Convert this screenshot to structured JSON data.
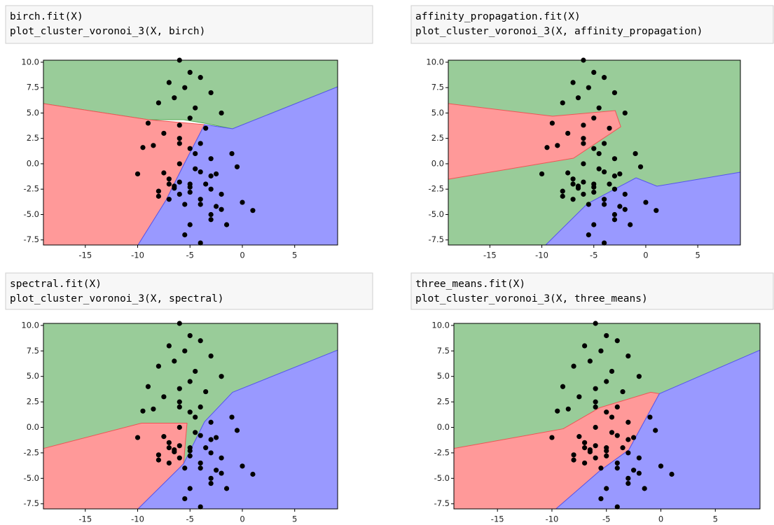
{
  "cells": [
    {
      "code": [
        "birch.fit(X)",
        "plot_cluster_voronoi_3(X, birch)"
      ],
      "chart_data": {
        "type": "scatter",
        "color": "#000000",
        "x": [
          -6,
          -5,
          -4,
          -7,
          -5.5,
          -3,
          -8,
          -6.5,
          -4.5,
          -2,
          -9,
          -5,
          -3.5,
          -7.5,
          -6,
          -4,
          -1,
          -5,
          -8.5,
          -3,
          -6,
          -4.5,
          -2.5,
          -7,
          -5,
          -10,
          -3,
          -6,
          -0.5,
          -4,
          -5.5,
          -7,
          -2,
          -6.5,
          -8,
          -4,
          -3,
          -5,
          -1.5,
          1,
          -9.5,
          -6,
          -4.5,
          -3.5,
          -7,
          -5,
          -2,
          -6,
          -8,
          -4,
          0,
          -3,
          -5.5,
          -6.5,
          -4,
          -7.5,
          -5,
          -2.5,
          -3,
          -6
        ],
        "y": [
          10.2,
          9,
          8.5,
          8,
          7.5,
          7,
          6,
          6.5,
          5.5,
          5,
          4,
          4.5,
          3.5,
          3,
          2.5,
          2,
          1,
          1.5,
          1.8,
          0.5,
          0,
          -0.5,
          -1,
          -1.5,
          -2,
          -1,
          -2.5,
          -3,
          -0.3,
          -3.5,
          -4,
          -2,
          -4.5,
          -2.2,
          -3.2,
          -4,
          -5,
          -6,
          -6,
          -4.6,
          1.6,
          2,
          1,
          -2,
          -3.5,
          -2.8,
          -3,
          -1.8,
          -2.7,
          -0.8,
          -3.8,
          -5.5,
          -7,
          -2.4,
          -7.8,
          -0.9,
          -2.3,
          -4.2,
          -1.2,
          3.8
        ],
        "xlim": [
          -19,
          9.1
        ],
        "ylim": [
          -8,
          10.2
        ],
        "xticks": [
          -15,
          -10,
          -5,
          0,
          5
        ],
        "yticks": [
          {
            "value": 10,
            "label": "10.0"
          },
          7.5,
          {
            "value": 5,
            "label": "5.0"
          },
          2.5,
          {
            "value": 0,
            "label": "0.0"
          },
          -2.5,
          {
            "value": -5,
            "label": "-5.0"
          },
          -7.5
        ]
      }
    },
    {
      "code": [
        "affinity_propagation.fit(X)",
        "plot_cluster_voronoi_3(X, affinity_propagation)"
      ],
      "chart_data": {
        "type": "scatter",
        "color": "#000000",
        "x": [
          -6,
          -5,
          -4,
          -7,
          -5.5,
          -3,
          -8,
          -6.5,
          -4.5,
          -2,
          -9,
          -5,
          -3.5,
          -7.5,
          -6,
          -4,
          -1,
          -5,
          -8.5,
          -3,
          -6,
          -4.5,
          -2.5,
          -7,
          -5,
          -10,
          -3,
          -6,
          -0.5,
          -4,
          -5.5,
          -7,
          -2,
          -6.5,
          -8,
          -4,
          -3,
          -5,
          -1.5,
          1,
          -9.5,
          -6,
          -4.5,
          -3.5,
          -7,
          -5,
          -2,
          -6,
          -8,
          -4,
          0,
          -3,
          -5.5,
          -6.5,
          -4,
          -7.5,
          -5,
          -2.5,
          -3,
          -6
        ],
        "y": [
          10.2,
          9,
          8.5,
          8,
          7.5,
          7,
          6,
          6.5,
          5.5,
          5,
          4,
          4.5,
          3.5,
          3,
          2.5,
          2,
          1,
          1.5,
          1.8,
          0.5,
          0,
          -0.5,
          -1,
          -1.5,
          -2,
          -1,
          -2.5,
          -3,
          -0.3,
          -3.5,
          -4,
          -2,
          -4.5,
          -2.2,
          -3.2,
          -4,
          -5,
          -6,
          -6,
          -4.6,
          1.6,
          2,
          1,
          -2,
          -3.5,
          -2.8,
          -3,
          -1.8,
          -2.7,
          -0.8,
          -3.8,
          -5.5,
          -7,
          -2.4,
          -7.8,
          -0.9,
          -2.3,
          -4.2,
          -1.2,
          3.8
        ],
        "xlim": [
          -19,
          9.1
        ],
        "ylim": [
          -8,
          10.2
        ],
        "xticks": [
          -15,
          -10,
          -5,
          0,
          5
        ],
        "yticks": [
          {
            "value": 10,
            "label": "10.0"
          },
          7.5,
          {
            "value": 5,
            "label": "5.0"
          },
          2.5,
          {
            "value": 0,
            "label": "0.0"
          },
          -2.5,
          {
            "value": -5,
            "label": "-5.0"
          },
          -7.5
        ]
      }
    },
    {
      "code": [
        "spectral.fit(X)",
        "plot_cluster_voronoi_3(X, spectral)"
      ],
      "chart_data": {
        "type": "scatter",
        "color": "#000000",
        "x": [
          -6,
          -5,
          -4,
          -7,
          -5.5,
          -3,
          -8,
          -6.5,
          -4.5,
          -2,
          -9,
          -5,
          -3.5,
          -7.5,
          -6,
          -4,
          -1,
          -5,
          -8.5,
          -3,
          -6,
          -4.5,
          -2.5,
          -7,
          -5,
          -10,
          -3,
          -6,
          -0.5,
          -4,
          -5.5,
          -7,
          -2,
          -6.5,
          -8,
          -4,
          -3,
          -5,
          -1.5,
          1,
          -9.5,
          -6,
          -4.5,
          -3.5,
          -7,
          -5,
          -2,
          -6,
          -8,
          -4,
          0,
          -3,
          -5.5,
          -6.5,
          -4,
          -7.5,
          -5,
          -2.5,
          -3,
          -6
        ],
        "y": [
          10.2,
          9,
          8.5,
          8,
          7.5,
          7,
          6,
          6.5,
          5.5,
          5,
          4,
          4.5,
          3.5,
          3,
          2.5,
          2,
          1,
          1.5,
          1.8,
          0.5,
          0,
          -0.5,
          -1,
          -1.5,
          -2,
          -1,
          -2.5,
          -3,
          -0.3,
          -3.5,
          -4,
          -2,
          -4.5,
          -2.2,
          -3.2,
          -4,
          -5,
          -6,
          -6,
          -4.6,
          1.6,
          2,
          1,
          -2,
          -3.5,
          -2.8,
          -3,
          -1.8,
          -2.7,
          -0.8,
          -3.8,
          -5.5,
          -7,
          -2.4,
          -7.8,
          -0.9,
          -2.3,
          -4.2,
          -1.2,
          3.8
        ],
        "xlim": [
          -19,
          9.1
        ],
        "ylim": [
          -8,
          10.2
        ],
        "xticks": [
          -15,
          -10,
          -5,
          0,
          5
        ],
        "yticks": [
          {
            "value": 10,
            "label": "10.0"
          },
          7.5,
          {
            "value": 5,
            "label": "5.0"
          },
          2.5,
          {
            "value": 0,
            "label": "0.0"
          },
          -2.5,
          {
            "value": -5,
            "label": "-5.0"
          },
          -7.5
        ]
      }
    },
    {
      "code": [
        "three_means.fit(X)",
        "plot_cluster_voronoi_3(X, three_means)"
      ],
      "chart_data": {
        "type": "scatter",
        "color": "#000000",
        "x": [
          -6,
          -5,
          -4,
          -7,
          -5.5,
          -3,
          -8,
          -6.5,
          -4.5,
          -2,
          -9,
          -5,
          -3.5,
          -7.5,
          -6,
          -4,
          -1,
          -5,
          -8.5,
          -3,
          -6,
          -4.5,
          -2.5,
          -7,
          -5,
          -10,
          -3,
          -6,
          -0.5,
          -4,
          -5.5,
          -7,
          -2,
          -6.5,
          -8,
          -4,
          -3,
          -5,
          -1.5,
          1,
          -9.5,
          -6,
          -4.5,
          -3.5,
          -7,
          -5,
          -2,
          -6,
          -8,
          -4,
          0,
          -3,
          -5.5,
          -6.5,
          -4,
          -7.5,
          -5,
          -2.5,
          -3,
          -6
        ],
        "y": [
          10.2,
          9,
          8.5,
          8,
          7.5,
          7,
          6,
          6.5,
          5.5,
          5,
          4,
          4.5,
          3.5,
          3,
          2.5,
          2,
          1,
          1.5,
          1.8,
          0.5,
          0,
          -0.5,
          -1,
          -1.5,
          -2,
          -1,
          -2.5,
          -3,
          -0.3,
          -3.5,
          -4,
          -2,
          -4.5,
          -2.2,
          -3.2,
          -4,
          -5,
          -6,
          -6,
          -4.6,
          1.6,
          2,
          1,
          -2,
          -3.5,
          -2.8,
          -3,
          -1.8,
          -2.7,
          -0.8,
          -3.8,
          -5.5,
          -7,
          -2.4,
          -7.8,
          -0.9,
          -2.3,
          -4.2,
          -1.2,
          3.8
        ],
        "xlim": [
          -19,
          9.1
        ],
        "ylim": [
          -8,
          10.2
        ],
        "xticks": [
          -15,
          -10,
          -5,
          0,
          5
        ],
        "yticks": [
          {
            "value": 10,
            "label": "10.0"
          },
          7.5,
          {
            "value": 5,
            "label": "5.0"
          },
          2.5,
          {
            "value": 0,
            "label": "0.0"
          },
          -2.5,
          {
            "value": -5,
            "label": "-5.0"
          },
          -7.5
        ]
      }
    }
  ]
}
